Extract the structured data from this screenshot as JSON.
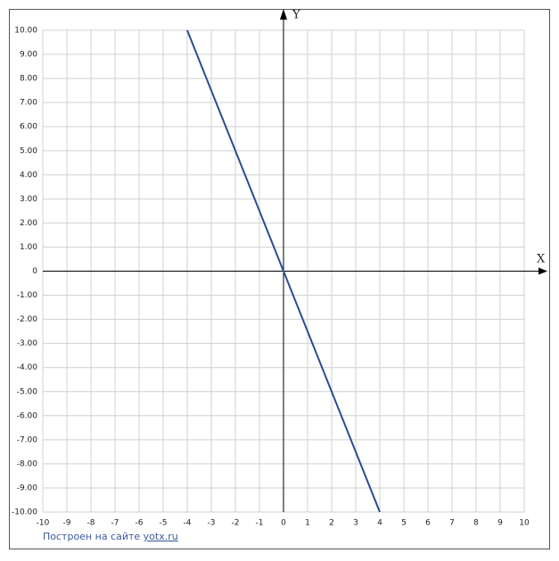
{
  "chart_data": {
    "type": "line",
    "x_label": "X",
    "y_label": "Y",
    "x": [
      -4,
      4
    ],
    "series": [
      {
        "values": [
          10,
          -10
        ],
        "color": "#2b4c94"
      }
    ],
    "xlim": [
      -10,
      10
    ],
    "ylim": [
      -10,
      10
    ],
    "xticks": [
      -10,
      -9,
      -8,
      -7,
      -6,
      -5,
      -4,
      -3,
      -2,
      -1,
      0,
      1,
      2,
      3,
      4,
      5,
      6,
      7,
      8,
      9,
      10
    ],
    "yticks": [
      {
        "value": 10,
        "label": "10.00"
      },
      {
        "value": 9,
        "label": "9.00"
      },
      {
        "value": 8,
        "label": "8.00"
      },
      {
        "value": 7,
        "label": "7.00"
      },
      {
        "value": 6,
        "label": "6.00"
      },
      {
        "value": 5,
        "label": "5.00"
      },
      {
        "value": 4,
        "label": "4.00"
      },
      {
        "value": 3,
        "label": "3.00"
      },
      {
        "value": 2,
        "label": "2.00"
      },
      {
        "value": 1,
        "label": "1.00"
      },
      0,
      {
        "value": -1,
        "label": "-1.00"
      },
      {
        "value": -2,
        "label": "-2.00"
      },
      {
        "value": -3,
        "label": "-3.00"
      },
      {
        "value": -4,
        "label": "-4.00"
      },
      {
        "value": -5,
        "label": "-5.00"
      },
      {
        "value": -6,
        "label": "-6.00"
      },
      {
        "value": -7,
        "label": "-7.00"
      },
      {
        "value": -8,
        "label": "-8.00"
      },
      {
        "value": -9,
        "label": "-9.00"
      },
      {
        "value": -10,
        "label": "-10.00"
      }
    ],
    "grid": true
  },
  "footer": {
    "text": "Построен на сайте",
    "link": "yotx.ru"
  }
}
